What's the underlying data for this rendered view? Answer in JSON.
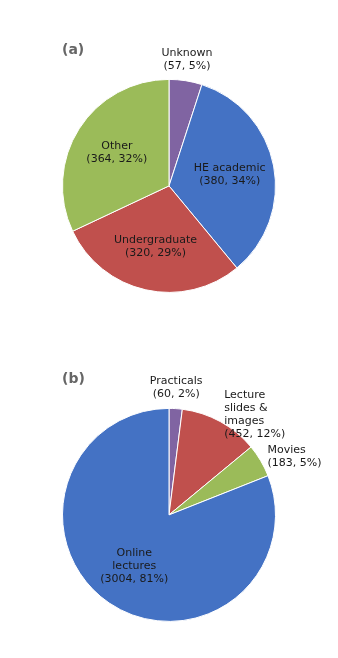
{
  "chart_data": [
    {
      "type": "pie",
      "title": "(a)",
      "categories": [
        "Unknown\n(57, 5%)",
        "HE academic\n(380, 34%)",
        "Undergraduate\n(320, 29%)",
        "Other\n(364, 32%)"
      ],
      "values": [
        5,
        34,
        29,
        32
      ],
      "colors": [
        "#8064A2",
        "#4472C4",
        "#C0504D",
        "#9BBB59"
      ]
    },
    {
      "type": "pie",
      "title": "(b)",
      "categories": [
        "Practicals\n(60, 2%)",
        "Lecture\nslides &\nimages\n(452, 12%)",
        "Movies\n(183, 5%)",
        "Online\nlectures\n(3004, 81%)"
      ],
      "values": [
        2,
        12,
        5,
        81
      ],
      "colors": [
        "#8064A2",
        "#C0504D",
        "#9BBB59",
        "#4472C4"
      ]
    }
  ]
}
